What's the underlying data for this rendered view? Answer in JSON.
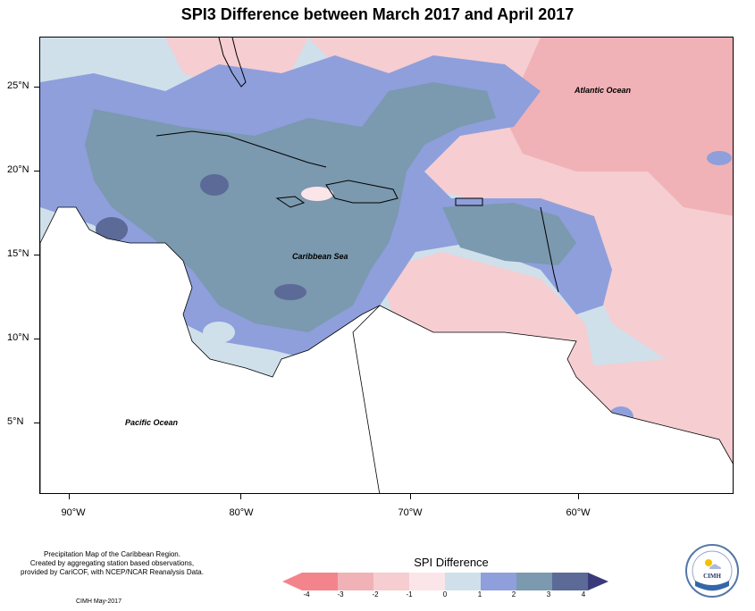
{
  "title": "SPI3 Difference between March 2017 and April 2017",
  "map_labels": {
    "atlantic": "Atlantic Ocean",
    "caribbean": "Caribbean Sea",
    "pacific": "Pacific Ocean"
  },
  "lat_ticks": [
    "25°N",
    "20°N",
    "15°N",
    "10°N",
    "5°N"
  ],
  "lon_ticks": [
    "90°W",
    "80°W",
    "70°W",
    "60°W"
  ],
  "credits": {
    "line1": "Precipitation Map of the Caribbean Region.",
    "line2": "Created by aggregating station based observations,",
    "line3": "provided by CariCOF, with NCEP/NCAR Reanalysis Data.",
    "date": "CIMH May-2017"
  },
  "legend": {
    "title": "SPI Difference",
    "ticks": [
      "-4",
      "-3",
      "-2",
      "-1",
      "0",
      "1",
      "2",
      "3",
      "4"
    ],
    "colors": [
      "#f4848c",
      "#f0b2b6",
      "#f6cdd1",
      "#fbe5e8",
      "#cfe0ea",
      "#8e9fdc",
      "#7b99af",
      "#5b6a96"
    ]
  },
  "logo": {
    "text": "CIMH"
  }
}
